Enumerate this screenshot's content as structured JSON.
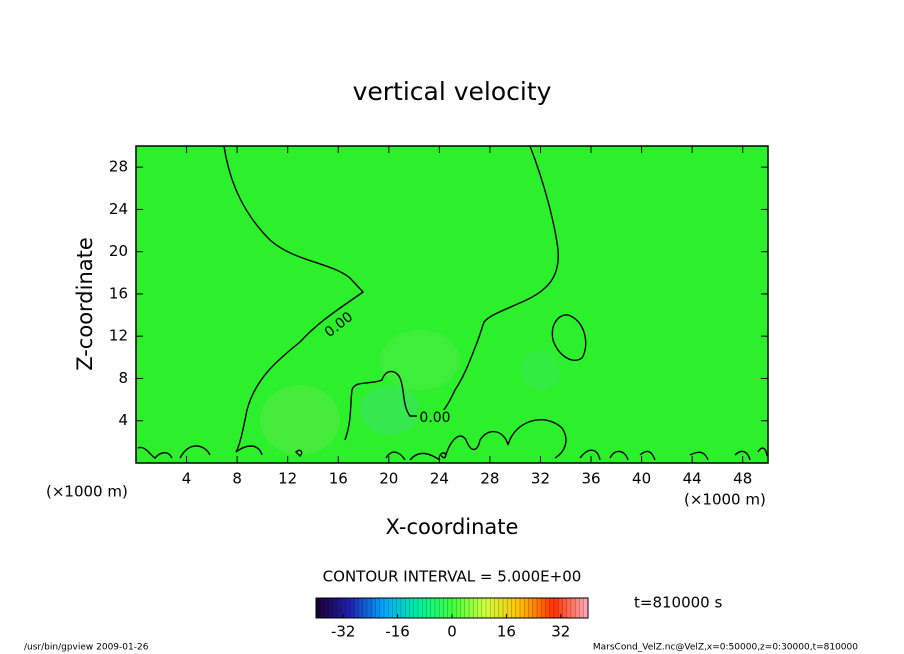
{
  "chart_data": {
    "type": "contour",
    "title": "vertical velocity",
    "xlabel": "X-coordinate",
    "ylabel": "Z-coordinate",
    "unit_label": "(×1000 m)",
    "xlim": [
      0,
      50
    ],
    "xticks": [
      4,
      8,
      12,
      16,
      20,
      24,
      28,
      32,
      36,
      40,
      44,
      48
    ],
    "ylim": [
      0,
      30
    ],
    "yticks": [
      4,
      8,
      12,
      16,
      20,
      24,
      28
    ],
    "field_color": "#2cf02c",
    "contour_levels": [
      {
        "value": 0,
        "label": "0.00"
      }
    ],
    "contour_interval": "CONTOUR INTERVAL = 5.000E+00",
    "time": "t=810000 s",
    "colorbar": {
      "lim": [
        -40,
        40
      ],
      "ticks": [
        -32,
        -16,
        0,
        16,
        32
      ],
      "colors": [
        "#1a0030",
        "#2020b0",
        "#00a8ff",
        "#00f0a0",
        "#40ff40",
        "#d0ff40",
        "#ffc000",
        "#ff3000",
        "#ffb0c0"
      ]
    },
    "footer_left": "/usr/bin/gpview  2009-01-26",
    "footer_right": "MarsCond_VelZ.nc@VelZ,x=0:50000,z=0:30000,t=810000"
  }
}
